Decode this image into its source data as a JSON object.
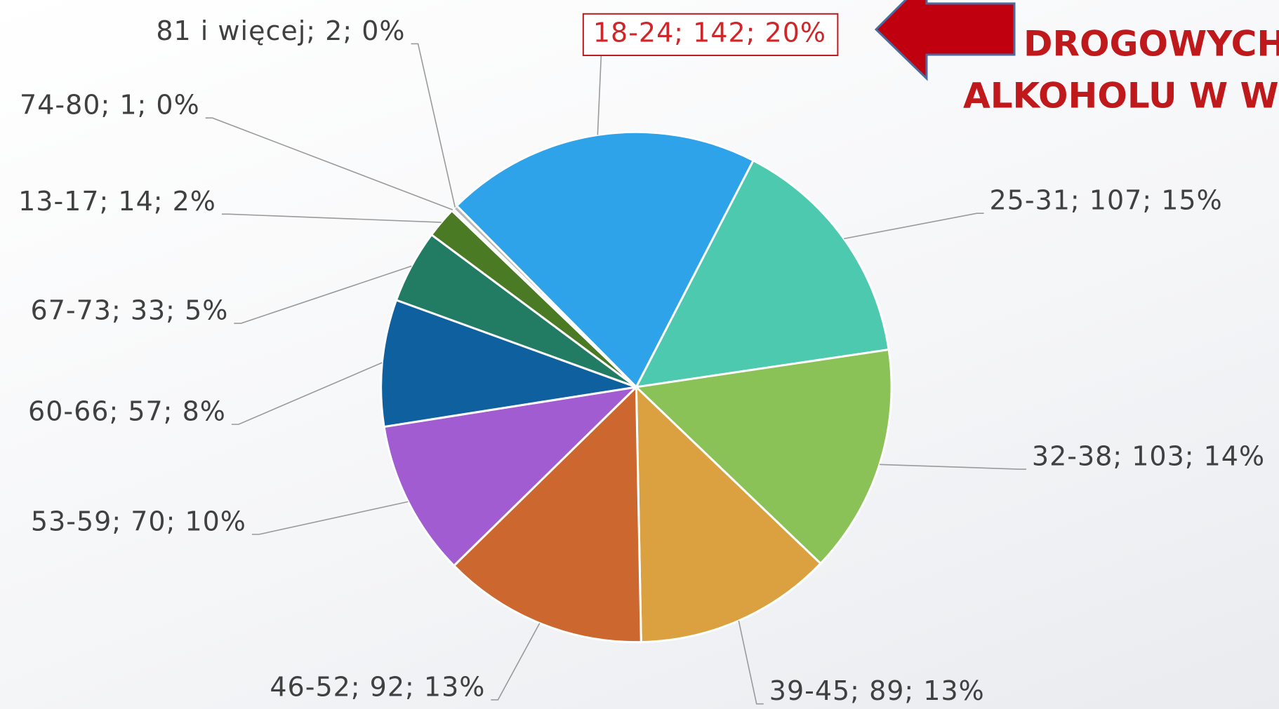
{
  "chart_data": {
    "type": "pie",
    "annotations": [
      "DROGOWYCH",
      "ALKOHOLU W W"
    ],
    "categories": [
      "18-24",
      "25-31",
      "32-38",
      "39-45",
      "46-52",
      "53-59",
      "60-66",
      "67-73",
      "13-17",
      "74-80",
      "81 i więcej"
    ],
    "values": [
      142,
      107,
      103,
      89,
      92,
      70,
      57,
      33,
      14,
      1,
      2
    ],
    "value_labels": [
      "18-24; 142; 20%",
      "25-31; 107; 15%",
      "32-38; 103; 14%",
      "39-45; 89; 13%",
      "46-52; 92; 13%",
      "53-59; 70; 10%",
      "60-66; 57; 8%",
      "67-73; 33; 5%",
      "13-17; 14; 2%",
      "74-80; 1; 0%",
      "81 i więcej; 2; 0%"
    ],
    "colors": [
      "#2ea3ea",
      "#4dc9b0",
      "#8bc257",
      "#dba03f",
      "#cc672f",
      "#a05cd0",
      "#0e609e",
      "#227c63",
      "#4b7a24",
      "#9aa7b0",
      "#b8b8b8"
    ]
  }
}
